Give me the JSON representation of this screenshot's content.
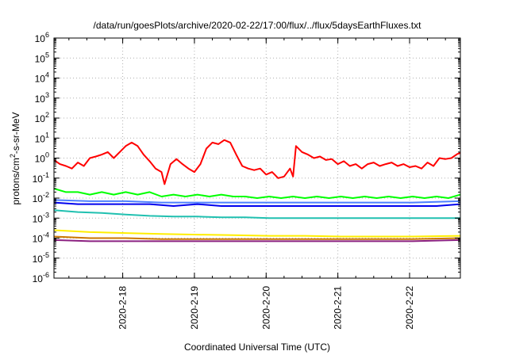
{
  "chart_data": {
    "type": "line",
    "title": "/data/run/goesPlots/archive/2020-02-22/17:00/flux/../flux/5daysEarthFluxes.txt",
    "xlabel": "Coordinated Universal Time (UTC)",
    "ylabel": "protons/cm²-s-sr-MeV",
    "x_range": [
      "2020-02-17 01:00",
      "2020-02-22 17:00"
    ],
    "x_ticks": [
      "2020-2-18",
      "2020-2-19",
      "2020-2-20",
      "2020-2-21",
      "2020-2-22"
    ],
    "y_scale": "log",
    "y_range": [
      1e-06,
      1000000.0
    ],
    "y_ticks": [
      {
        "base": "10",
        "exp": "-6",
        "value": 1e-06
      },
      {
        "base": "10",
        "exp": "-5",
        "value": 1e-05
      },
      {
        "base": "10",
        "exp": "-4",
        "value": 0.0001
      },
      {
        "base": "10",
        "exp": "-3",
        "value": 0.001
      },
      {
        "base": "10",
        "exp": "-2",
        "value": 0.01
      },
      {
        "base": "10",
        "exp": "-1",
        "value": 0.1
      },
      {
        "base": "10",
        "exp": "0",
        "value": 1
      },
      {
        "base": "10",
        "exp": "1",
        "value": 10
      },
      {
        "base": "10",
        "exp": "2",
        "value": 100
      },
      {
        "base": "10",
        "exp": "3",
        "value": 1000
      },
      {
        "base": "10",
        "exp": "4",
        "value": 10000
      },
      {
        "base": "10",
        "exp": "5",
        "value": 100000
      },
      {
        "base": "10",
        "exp": "6",
        "value": 1000000
      }
    ],
    "grid": true,
    "series": [
      {
        "color": "#ff0000",
        "points": [
          [
            "2020-02-17 01:00",
            0.8
          ],
          [
            "2020-02-17 03:00",
            0.5
          ],
          [
            "2020-02-17 05:00",
            0.4
          ],
          [
            "2020-02-17 07:00",
            0.3
          ],
          [
            "2020-02-17 09:00",
            0.6
          ],
          [
            "2020-02-17 11:00",
            0.4
          ],
          [
            "2020-02-17 13:00",
            1.0
          ],
          [
            "2020-02-17 15:00",
            1.2
          ],
          [
            "2020-02-17 17:00",
            1.5
          ],
          [
            "2020-02-17 19:00",
            2.0
          ],
          [
            "2020-02-17 21:00",
            1.0
          ],
          [
            "2020-02-17 23:00",
            2.0
          ],
          [
            "2020-02-18 01:00",
            4.0
          ],
          [
            "2020-02-18 03:00",
            6.0
          ],
          [
            "2020-02-18 05:00",
            4.0
          ],
          [
            "2020-02-18 07:00",
            1.5
          ],
          [
            "2020-02-18 09:00",
            0.7
          ],
          [
            "2020-02-18 11:00",
            0.3
          ],
          [
            "2020-02-18 13:00",
            0.2
          ],
          [
            "2020-02-18 14:00",
            0.05
          ],
          [
            "2020-02-18 16:00",
            0.5
          ],
          [
            "2020-02-18 18:00",
            0.9
          ],
          [
            "2020-02-18 20:00",
            0.5
          ],
          [
            "2020-02-18 22:00",
            0.3
          ],
          [
            "2020-02-19 00:00",
            0.2
          ],
          [
            "2020-02-19 02:00",
            0.5
          ],
          [
            "2020-02-19 04:00",
            3.0
          ],
          [
            "2020-02-19 06:00",
            6.0
          ],
          [
            "2020-02-19 08:00",
            5.0
          ],
          [
            "2020-02-19 10:00",
            8.0
          ],
          [
            "2020-02-19 12:00",
            6.0
          ],
          [
            "2020-02-19 14:00",
            1.5
          ],
          [
            "2020-02-19 16:00",
            0.4
          ],
          [
            "2020-02-19 18:00",
            0.3
          ],
          [
            "2020-02-19 20:00",
            0.25
          ],
          [
            "2020-02-19 22:00",
            0.3
          ],
          [
            "2020-02-20 00:00",
            0.15
          ],
          [
            "2020-02-20 02:00",
            0.2
          ],
          [
            "2020-02-20 04:00",
            0.1
          ],
          [
            "2020-02-20 06:00",
            0.12
          ],
          [
            "2020-02-20 08:00",
            0.3
          ],
          [
            "2020-02-20 09:00",
            0.12
          ],
          [
            "2020-02-20 10:00",
            4.0
          ],
          [
            "2020-02-20 12:00",
            2.0
          ],
          [
            "2020-02-20 14:00",
            1.5
          ],
          [
            "2020-02-20 16:00",
            1.0
          ],
          [
            "2020-02-20 18:00",
            1.2
          ],
          [
            "2020-02-20 20:00",
            0.8
          ],
          [
            "2020-02-20 22:00",
            0.9
          ],
          [
            "2020-02-21 00:00",
            0.5
          ],
          [
            "2020-02-21 02:00",
            0.7
          ],
          [
            "2020-02-21 04:00",
            0.4
          ],
          [
            "2020-02-21 06:00",
            0.5
          ],
          [
            "2020-02-21 08:00",
            0.3
          ],
          [
            "2020-02-21 10:00",
            0.5
          ],
          [
            "2020-02-21 12:00",
            0.6
          ],
          [
            "2020-02-21 14:00",
            0.4
          ],
          [
            "2020-02-21 16:00",
            0.5
          ],
          [
            "2020-02-21 18:00",
            0.6
          ],
          [
            "2020-02-21 20:00",
            0.4
          ],
          [
            "2020-02-21 22:00",
            0.5
          ],
          [
            "2020-02-22 00:00",
            0.35
          ],
          [
            "2020-02-22 02:00",
            0.4
          ],
          [
            "2020-02-22 04:00",
            0.3
          ],
          [
            "2020-02-22 06:00",
            0.6
          ],
          [
            "2020-02-22 08:00",
            0.4
          ],
          [
            "2020-02-22 10:00",
            1.0
          ],
          [
            "2020-02-22 12:00",
            0.9
          ],
          [
            "2020-02-22 14:00",
            1.0
          ],
          [
            "2020-02-22 16:00",
            1.6
          ],
          [
            "2020-02-22 17:00",
            1.8
          ]
        ]
      },
      {
        "color": "#00ff00",
        "points": [
          [
            "2020-02-17 01:00",
            0.03
          ],
          [
            "2020-02-17 05:00",
            0.02
          ],
          [
            "2020-02-17 09:00",
            0.02
          ],
          [
            "2020-02-17 13:00",
            0.015
          ],
          [
            "2020-02-17 17:00",
            0.02
          ],
          [
            "2020-02-17 21:00",
            0.015
          ],
          [
            "2020-02-18 01:00",
            0.02
          ],
          [
            "2020-02-18 05:00",
            0.015
          ],
          [
            "2020-02-18 09:00",
            0.02
          ],
          [
            "2020-02-18 13:00",
            0.012
          ],
          [
            "2020-02-18 17:00",
            0.015
          ],
          [
            "2020-02-18 21:00",
            0.012
          ],
          [
            "2020-02-19 01:00",
            0.015
          ],
          [
            "2020-02-19 05:00",
            0.012
          ],
          [
            "2020-02-19 09:00",
            0.015
          ],
          [
            "2020-02-19 13:00",
            0.012
          ],
          [
            "2020-02-19 17:00",
            0.012
          ],
          [
            "2020-02-19 21:00",
            0.01
          ],
          [
            "2020-02-20 01:00",
            0.012
          ],
          [
            "2020-02-20 05:00",
            0.01
          ],
          [
            "2020-02-20 09:00",
            0.012
          ],
          [
            "2020-02-20 13:00",
            0.01
          ],
          [
            "2020-02-20 17:00",
            0.012
          ],
          [
            "2020-02-20 21:00",
            0.01
          ],
          [
            "2020-02-21 01:00",
            0.012
          ],
          [
            "2020-02-21 05:00",
            0.01
          ],
          [
            "2020-02-21 09:00",
            0.012
          ],
          [
            "2020-02-21 13:00",
            0.01
          ],
          [
            "2020-02-21 17:00",
            0.012
          ],
          [
            "2020-02-21 21:00",
            0.01
          ],
          [
            "2020-02-22 01:00",
            0.012
          ],
          [
            "2020-02-22 05:00",
            0.01
          ],
          [
            "2020-02-22 09:00",
            0.012
          ],
          [
            "2020-02-22 13:00",
            0.01
          ],
          [
            "2020-02-22 17:00",
            0.015
          ]
        ]
      },
      {
        "color": "#0000ee",
        "points": [
          [
            "2020-02-17 01:00",
            0.006
          ],
          [
            "2020-02-17 09:00",
            0.005
          ],
          [
            "2020-02-17 17:00",
            0.005
          ],
          [
            "2020-02-18 01:00",
            0.005
          ],
          [
            "2020-02-18 09:00",
            0.005
          ],
          [
            "2020-02-18 17:00",
            0.004
          ],
          [
            "2020-02-19 01:00",
            0.005
          ],
          [
            "2020-02-19 09:00",
            0.004
          ],
          [
            "2020-02-19 17:00",
            0.004
          ],
          [
            "2020-02-20 01:00",
            0.004
          ],
          [
            "2020-02-20 09:00",
            0.004
          ],
          [
            "2020-02-20 17:00",
            0.004
          ],
          [
            "2020-02-21 01:00",
            0.004
          ],
          [
            "2020-02-21 09:00",
            0.004
          ],
          [
            "2020-02-21 17:00",
            0.004
          ],
          [
            "2020-02-22 01:00",
            0.004
          ],
          [
            "2020-02-22 09:00",
            0.004
          ],
          [
            "2020-02-22 17:00",
            0.005
          ]
        ]
      },
      {
        "color": "#4d7fff",
        "points": [
          [
            "2020-02-17 01:00",
            0.008
          ],
          [
            "2020-02-17 13:00",
            0.007
          ],
          [
            "2020-02-18 01:00",
            0.007
          ],
          [
            "2020-02-18 13:00",
            0.006
          ],
          [
            "2020-02-19 01:00",
            0.006
          ],
          [
            "2020-02-19 13:00",
            0.006
          ],
          [
            "2020-02-20 01:00",
            0.006
          ],
          [
            "2020-02-20 13:00",
            0.006
          ],
          [
            "2020-02-21 01:00",
            0.006
          ],
          [
            "2020-02-21 13:00",
            0.006
          ],
          [
            "2020-02-22 01:00",
            0.006
          ],
          [
            "2020-02-22 17:00",
            0.007
          ]
        ]
      },
      {
        "color": "#20c0b0",
        "points": [
          [
            "2020-02-17 01:00",
            0.0025
          ],
          [
            "2020-02-17 09:00",
            0.002
          ],
          [
            "2020-02-17 17:00",
            0.0018
          ],
          [
            "2020-02-18 01:00",
            0.0015
          ],
          [
            "2020-02-18 09:00",
            0.0013
          ],
          [
            "2020-02-18 17:00",
            0.0012
          ],
          [
            "2020-02-19 01:00",
            0.0012
          ],
          [
            "2020-02-19 09:00",
            0.0011
          ],
          [
            "2020-02-19 17:00",
            0.0011
          ],
          [
            "2020-02-20 01:00",
            0.001
          ],
          [
            "2020-02-20 09:00",
            0.001
          ],
          [
            "2020-02-20 17:00",
            0.001
          ],
          [
            "2020-02-21 01:00",
            0.001
          ],
          [
            "2020-02-21 09:00",
            0.001
          ],
          [
            "2020-02-21 17:00",
            0.001
          ],
          [
            "2020-02-22 01:00",
            0.001
          ],
          [
            "2020-02-22 09:00",
            0.001
          ],
          [
            "2020-02-22 17:00",
            0.001
          ]
        ]
      },
      {
        "color": "#ffee00",
        "points": [
          [
            "2020-02-17 01:00",
            0.00025
          ],
          [
            "2020-02-17 13:00",
            0.0002
          ],
          [
            "2020-02-18 01:00",
            0.00018
          ],
          [
            "2020-02-18 13:00",
            0.00016
          ],
          [
            "2020-02-19 01:00",
            0.00015
          ],
          [
            "2020-02-19 13:00",
            0.00014
          ],
          [
            "2020-02-20 01:00",
            0.00013
          ],
          [
            "2020-02-20 13:00",
            0.00013
          ],
          [
            "2020-02-21 01:00",
            0.00012
          ],
          [
            "2020-02-21 13:00",
            0.00012
          ],
          [
            "2020-02-22 01:00",
            0.00012
          ],
          [
            "2020-02-22 17:00",
            0.00013
          ]
        ]
      },
      {
        "color": "#cc7700",
        "points": [
          [
            "2020-02-17 01:00",
            0.00012
          ],
          [
            "2020-02-17 13:00",
            0.0001
          ],
          [
            "2020-02-18 01:00",
            0.0001
          ],
          [
            "2020-02-18 13:00",
            9e-05
          ],
          [
            "2020-02-19 01:00",
            9e-05
          ],
          [
            "2020-02-19 13:00",
            9e-05
          ],
          [
            "2020-02-20 01:00",
            9e-05
          ],
          [
            "2020-02-20 13:00",
            9e-05
          ],
          [
            "2020-02-21 01:00",
            9e-05
          ],
          [
            "2020-02-21 13:00",
            9e-05
          ],
          [
            "2020-02-22 01:00",
            9e-05
          ],
          [
            "2020-02-22 17:00",
            0.0001
          ]
        ]
      },
      {
        "color": "#8b2080",
        "points": [
          [
            "2020-02-17 01:00",
            8e-05
          ],
          [
            "2020-02-17 13:00",
            7e-05
          ],
          [
            "2020-02-18 01:00",
            7e-05
          ],
          [
            "2020-02-18 13:00",
            7e-05
          ],
          [
            "2020-02-19 01:00",
            7e-05
          ],
          [
            "2020-02-19 13:00",
            7e-05
          ],
          [
            "2020-02-20 01:00",
            7e-05
          ],
          [
            "2020-02-20 13:00",
            7e-05
          ],
          [
            "2020-02-21 01:00",
            7e-05
          ],
          [
            "2020-02-21 13:00",
            7e-05
          ],
          [
            "2020-02-22 01:00",
            7e-05
          ],
          [
            "2020-02-22 17:00",
            8e-05
          ]
        ]
      }
    ]
  }
}
